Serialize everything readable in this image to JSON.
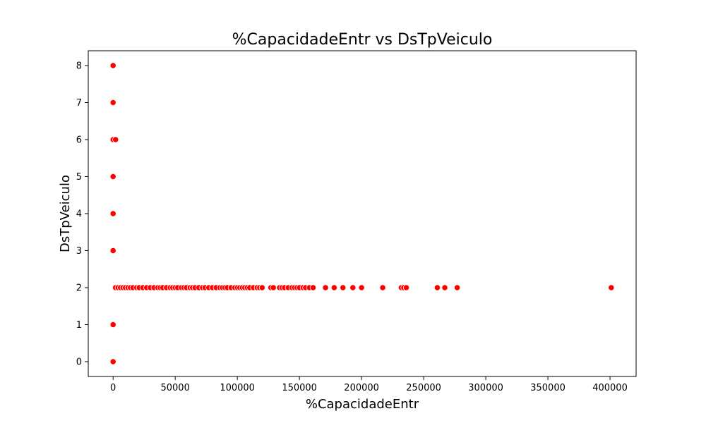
{
  "chart_data": {
    "type": "scatter",
    "title": "%CapacidadeEntr vs DsTpVeiculo",
    "xlabel": "%CapacidadeEntr",
    "ylabel": "DsTpVeiculo",
    "xlim": [
      -20000,
      421000
    ],
    "ylim": [
      -0.4,
      8.4
    ],
    "xticks": [
      0,
      50000,
      100000,
      150000,
      200000,
      250000,
      300000,
      350000,
      400000
    ],
    "yticks": [
      0,
      1,
      2,
      3,
      4,
      5,
      6,
      7,
      8
    ],
    "grid": false,
    "legend": "none",
    "marker_color": "#ff0000",
    "series": [
      {
        "x": [
          0,
          0,
          0,
          0,
          0,
          2000,
          0,
          0,
          0,
          1500,
          2000,
          4000,
          6000,
          8000,
          10000,
          12000,
          14000,
          16000,
          19000,
          21000,
          24000,
          27000,
          30000,
          33000,
          36000,
          38000,
          40000,
          43000,
          46000,
          48000,
          50000,
          52000,
          55000,
          57000,
          59000,
          62000,
          64000,
          66000,
          69000,
          72000,
          74000,
          77000,
          80000,
          83000,
          86000,
          88000,
          90000,
          92000,
          95000,
          98000,
          100000,
          102000,
          104000,
          106000,
          108000,
          110000,
          113000,
          116000,
          118000,
          120000,
          127000,
          129000,
          134000,
          136000,
          138000,
          141000,
          144000,
          146000,
          148000,
          150000,
          153000,
          155000,
          158000,
          161000,
          171000,
          178000,
          185000,
          193000,
          200000,
          217000,
          232000,
          234000,
          236000,
          261000,
          267000,
          277000,
          401000
        ],
        "y": [
          8,
          7,
          6,
          5,
          4,
          6,
          3,
          1,
          0,
          2,
          2,
          2,
          2,
          2,
          2,
          2,
          2,
          2,
          2,
          2,
          2,
          2,
          2,
          2,
          2,
          2,
          2,
          2,
          2,
          2,
          2,
          2,
          2,
          2,
          2,
          2,
          2,
          2,
          2,
          2,
          2,
          2,
          2,
          2,
          2,
          2,
          2,
          2,
          2,
          2,
          2,
          2,
          2,
          2,
          2,
          2,
          2,
          2,
          2,
          2,
          2,
          2,
          2,
          2,
          2,
          2,
          2,
          2,
          2,
          2,
          2,
          2,
          2,
          2,
          2,
          2,
          2,
          2,
          2,
          2,
          2,
          2,
          2,
          2,
          2,
          2,
          2
        ]
      }
    ]
  }
}
